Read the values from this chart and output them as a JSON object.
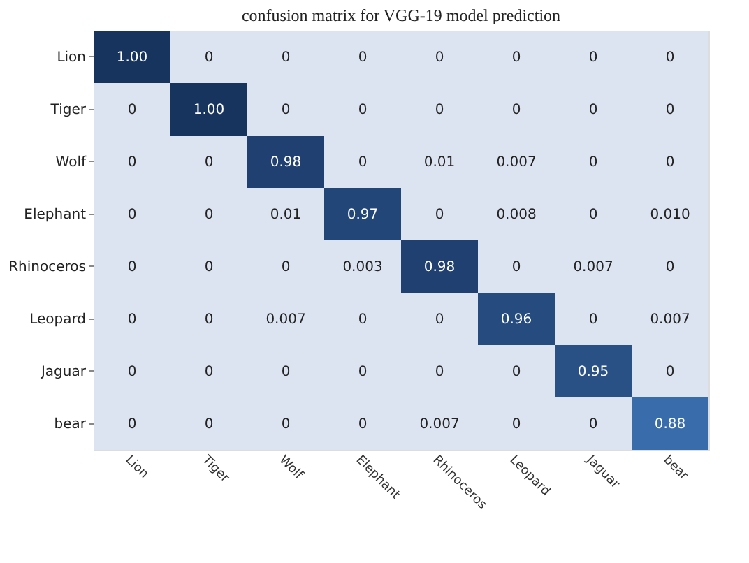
{
  "chart_data": {
    "type": "heatmap",
    "title": "confusion matrix for VGG-19 model prediction",
    "categories": [
      "Lion",
      "Tiger",
      "Wolf",
      "Elephant",
      "Rhinoceros",
      "Leopard",
      "Jaguar",
      "bear"
    ],
    "y_categories": [
      "Lion",
      "Tiger",
      "Wolf",
      "Elephant",
      "Rhinoceros",
      "Leopard",
      "Jaguar",
      "bear"
    ],
    "cells": [
      [
        1.0,
        0,
        0,
        0,
        0,
        0,
        0,
        0
      ],
      [
        0,
        1.0,
        0,
        0,
        0,
        0,
        0,
        0
      ],
      [
        0,
        0,
        0.98,
        0,
        0.01,
        0.007,
        0,
        0
      ],
      [
        0,
        0,
        0.01,
        0.97,
        0,
        0.008,
        0,
        0.01
      ],
      [
        0,
        0,
        0,
        0.003,
        0.98,
        0,
        0.007,
        0
      ],
      [
        0,
        0,
        0.007,
        0,
        0,
        0.96,
        0,
        0.007
      ],
      [
        0,
        0,
        0,
        0,
        0,
        0,
        0.95,
        0
      ],
      [
        0,
        0,
        0,
        0,
        0.007,
        0,
        0,
        0.88
      ]
    ],
    "cell_labels": [
      [
        "1.00",
        "0",
        "0",
        "0",
        "0",
        "0",
        "0",
        "0"
      ],
      [
        "0",
        "1.00",
        "0",
        "0",
        "0",
        "0",
        "0",
        "0"
      ],
      [
        "0",
        "0",
        "0.98",
        "0",
        "0.01",
        "0.007",
        "0",
        "0"
      ],
      [
        "0",
        "0",
        "0.01",
        "0.97",
        "0",
        "0.008",
        "0",
        "0.010"
      ],
      [
        "0",
        "0",
        "0",
        "0.003",
        "0.98",
        "0",
        "0.007",
        "0"
      ],
      [
        "0",
        "0",
        "0.007",
        "0",
        "0",
        "0.96",
        "0",
        "0.007"
      ],
      [
        "0",
        "0",
        "0",
        "0",
        "0",
        "0",
        "0.95",
        "0"
      ],
      [
        "0",
        "0",
        "0",
        "0",
        "0.007",
        "0",
        "0",
        "0.88"
      ]
    ]
  }
}
